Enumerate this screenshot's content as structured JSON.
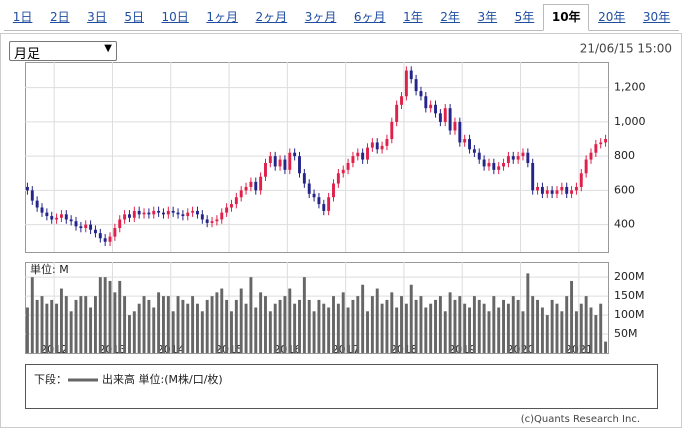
{
  "tabs": [
    "1日",
    "2日",
    "3日",
    "5日",
    "10日",
    "1ヶ月",
    "2ヶ月",
    "3ヶ月",
    "6ヶ月",
    "1年",
    "2年",
    "3年",
    "5年",
    "10年",
    "20年",
    "30年"
  ],
  "selected_tab": 13,
  "period_select": "月足",
  "timestamp": "21/06/15 15:00",
  "legend": {
    "prefix": "下段：",
    "label": "出来高 単位:(M株/口/枚)"
  },
  "copyright": "(c)Quants Research Inc.",
  "chart_data": [
    {
      "type": "candlestick",
      "up_color": "#e0204a",
      "down_color": "#24248a",
      "grid": true,
      "ylim": [
        240,
        1350
      ],
      "yticks": [
        {
          "value": 1200,
          "label": "1,200"
        },
        {
          "value": 1000,
          "label": "1,000"
        },
        800,
        600,
        400
      ],
      "xlim": [
        2011.5,
        2021.5
      ],
      "xticks": [
        2012,
        2013,
        2014,
        2015,
        2016,
        2017,
        2018,
        2019,
        2020,
        2021
      ],
      "open": [
        620,
        600,
        540,
        500,
        470,
        450,
        430,
        440,
        460,
        430,
        420,
        390,
        380,
        400,
        370,
        350,
        320,
        300,
        330,
        380,
        430,
        460,
        440,
        480,
        460,
        470,
        460,
        480,
        470,
        460,
        480,
        470,
        460,
        450,
        470,
        480,
        460,
        430,
        410,
        420,
        430,
        470,
        500,
        520,
        560,
        600,
        620,
        650,
        600,
        680,
        760,
        800,
        740,
        780,
        720,
        820,
        800,
        700,
        640,
        580,
        560,
        520,
        480,
        560,
        640,
        700,
        720,
        760,
        800,
        820,
        780,
        850,
        880,
        840,
        860,
        900,
        1000,
        1100,
        1150,
        1300,
        1250,
        1180,
        1150,
        1080,
        1100,
        1050,
        1000,
        1080,
        950,
        1000,
        880,
        900,
        840,
        820,
        780,
        740,
        760,
        720,
        740,
        760,
        800,
        780,
        800,
        820,
        760,
        600,
        620,
        580,
        600,
        580,
        600,
        620,
        580,
        600,
        620,
        700,
        780,
        820,
        870,
        880
      ],
      "high": [
        645,
        625,
        565,
        525,
        495,
        475,
        465,
        485,
        485,
        455,
        445,
        415,
        425,
        425,
        395,
        375,
        345,
        355,
        405,
        455,
        485,
        485,
        505,
        505,
        495,
        495,
        505,
        505,
        495,
        505,
        505,
        495,
        485,
        495,
        505,
        505,
        485,
        455,
        445,
        455,
        495,
        525,
        545,
        585,
        625,
        645,
        675,
        675,
        705,
        785,
        825,
        825,
        805,
        805,
        845,
        845,
        825,
        725,
        665,
        605,
        585,
        545,
        585,
        665,
        725,
        745,
        785,
        825,
        845,
        845,
        875,
        905,
        905,
        885,
        925,
        1025,
        1125,
        1175,
        1325,
        1325,
        1275,
        1205,
        1175,
        1125,
        1125,
        1075,
        1105,
        1105,
        1025,
        1025,
        925,
        925,
        865,
        845,
        805,
        785,
        785,
        765,
        785,
        825,
        825,
        825,
        845,
        845,
        785,
        645,
        645,
        625,
        625,
        625,
        645,
        645,
        625,
        645,
        725,
        805,
        845,
        895,
        905,
        925
      ],
      "low": [
        575,
        515,
        475,
        445,
        425,
        405,
        405,
        415,
        405,
        395,
        365,
        355,
        355,
        345,
        325,
        295,
        275,
        275,
        305,
        355,
        405,
        415,
        415,
        435,
        435,
        435,
        435,
        445,
        435,
        435,
        445,
        435,
        425,
        425,
        445,
        435,
        405,
        385,
        385,
        395,
        405,
        445,
        475,
        495,
        535,
        575,
        595,
        575,
        575,
        655,
        735,
        715,
        715,
        695,
        695,
        775,
        675,
        615,
        555,
        535,
        495,
        455,
        455,
        535,
        615,
        675,
        695,
        735,
        775,
        755,
        755,
        825,
        815,
        815,
        835,
        875,
        975,
        1075,
        1125,
        1225,
        1155,
        1125,
        1055,
        1055,
        1025,
        975,
        975,
        925,
        925,
        855,
        855,
        815,
        795,
        755,
        715,
        715,
        695,
        695,
        715,
        735,
        755,
        755,
        775,
        735,
        575,
        575,
        555,
        555,
        555,
        555,
        575,
        555,
        555,
        575,
        595,
        675,
        755,
        795,
        845,
        855
      ],
      "close": [
        600,
        540,
        500,
        470,
        450,
        430,
        440,
        460,
        430,
        420,
        390,
        380,
        400,
        370,
        350,
        320,
        300,
        330,
        380,
        430,
        460,
        440,
        480,
        460,
        470,
        460,
        480,
        470,
        460,
        480,
        470,
        460,
        450,
        470,
        480,
        460,
        430,
        410,
        420,
        430,
        470,
        500,
        520,
        560,
        600,
        620,
        650,
        600,
        680,
        760,
        800,
        740,
        780,
        720,
        820,
        800,
        700,
        640,
        580,
        560,
        520,
        480,
        560,
        640,
        700,
        720,
        760,
        800,
        820,
        780,
        850,
        880,
        840,
        860,
        900,
        1000,
        1100,
        1150,
        1300,
        1250,
        1180,
        1150,
        1080,
        1100,
        1050,
        1000,
        1080,
        950,
        1000,
        880,
        900,
        840,
        820,
        780,
        740,
        760,
        720,
        740,
        760,
        800,
        780,
        800,
        820,
        760,
        600,
        620,
        580,
        600,
        580,
        600,
        620,
        580,
        600,
        620,
        700,
        780,
        820,
        870,
        880,
        900
      ]
    },
    {
      "type": "bar",
      "unit_label": "単位: M",
      "color": "#666666",
      "grid": true,
      "ylim": [
        0,
        240
      ],
      "yticks": [
        {
          "value": 200,
          "label": "200M"
        },
        {
          "value": 150,
          "label": "150M"
        },
        {
          "value": 100,
          "label": "100M"
        },
        {
          "value": 50,
          "label": "50M"
        }
      ],
      "xlim": [
        2011.5,
        2021.5
      ],
      "xticks": [
        2012,
        2013,
        2014,
        2015,
        2016,
        2017,
        2018,
        2019,
        2020,
        2021
      ],
      "values": [
        120,
        200,
        140,
        150,
        130,
        140,
        130,
        170,
        150,
        110,
        140,
        150,
        150,
        120,
        150,
        200,
        200,
        190,
        160,
        190,
        150,
        100,
        110,
        130,
        150,
        140,
        120,
        160,
        150,
        150,
        110,
        150,
        140,
        130,
        150,
        130,
        110,
        140,
        150,
        160,
        170,
        140,
        110,
        140,
        170,
        130,
        200,
        120,
        160,
        150,
        110,
        130,
        140,
        150,
        170,
        130,
        140,
        200,
        140,
        110,
        140,
        130,
        120,
        150,
        130,
        160,
        120,
        140,
        150,
        180,
        110,
        150,
        170,
        130,
        140,
        160,
        120,
        150,
        130,
        180,
        140,
        150,
        120,
        130,
        140,
        150,
        110,
        160,
        140,
        150,
        130,
        120,
        150,
        140,
        130,
        110,
        150,
        120,
        140,
        130,
        150,
        140,
        110,
        210,
        150,
        140,
        120,
        100,
        140,
        130,
        110,
        150,
        190,
        110,
        130,
        150,
        120,
        100,
        130,
        30
      ]
    }
  ]
}
